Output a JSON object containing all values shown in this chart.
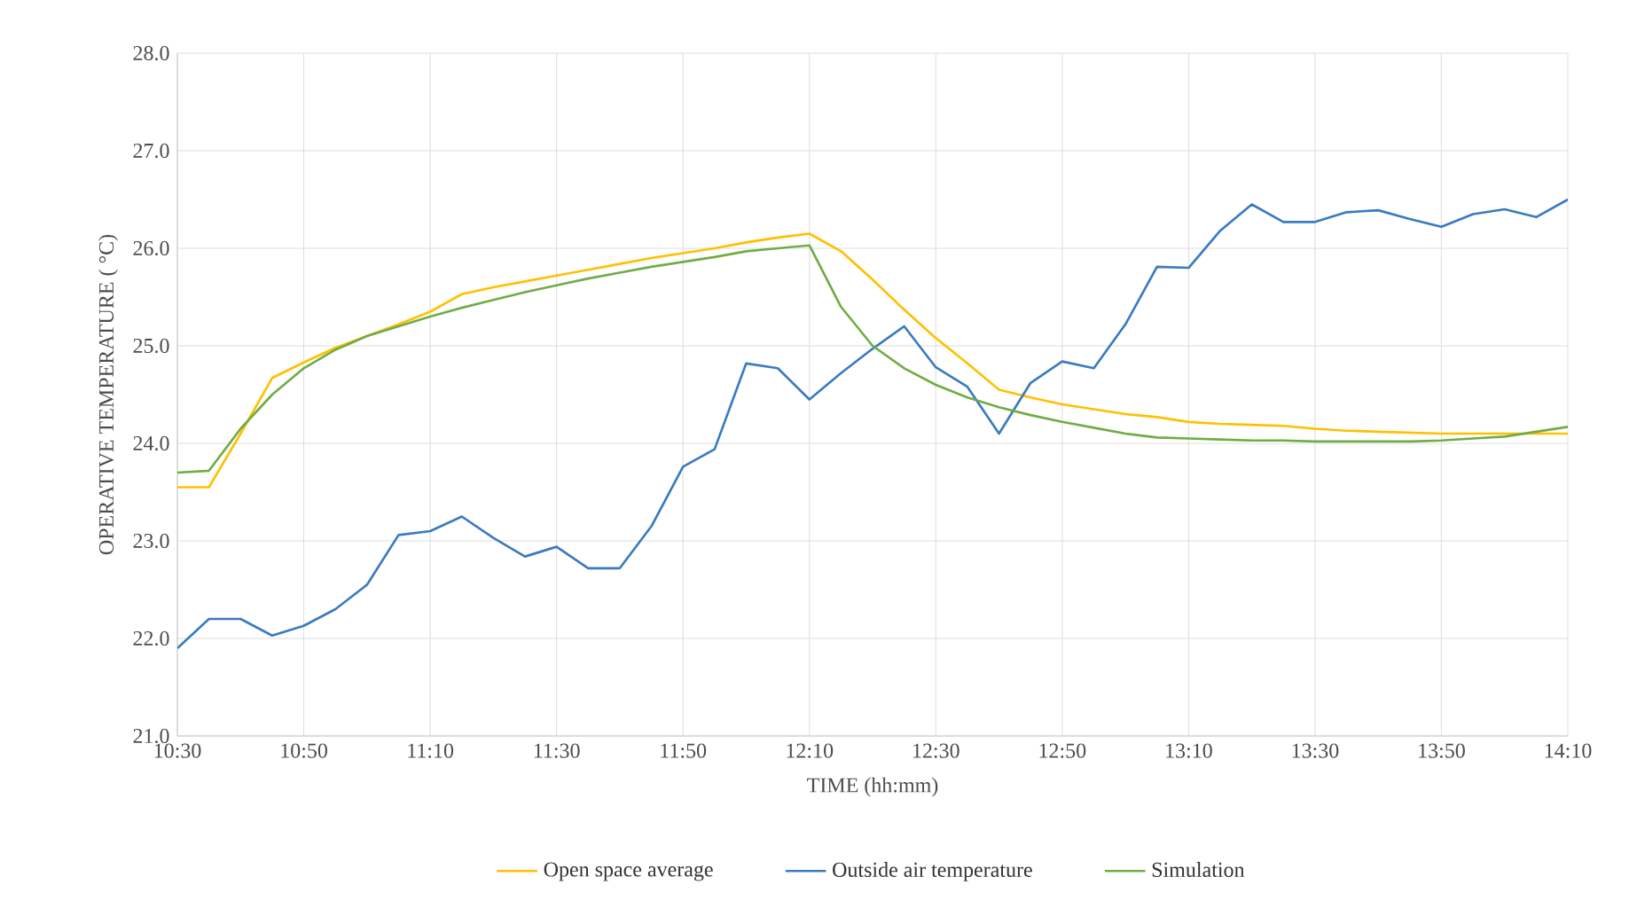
{
  "chart_data": {
    "type": "line",
    "xlabel": "TIME (hh:mm)",
    "ylabel": "OPERATIVE TEMPERATURE ( °C)",
    "x": [
      10.5,
      10.5833,
      10.6667,
      10.75,
      10.8333,
      10.9167,
      11,
      11.0833,
      11.1667,
      11.25,
      11.3333,
      11.4167,
      11.5,
      11.5833,
      11.6667,
      11.75,
      11.8333,
      11.9167,
      12,
      12.0833,
      12.1667,
      12.25,
      12.3333,
      12.4167,
      12.5,
      12.5833,
      12.6667,
      12.75,
      12.8333,
      12.9167,
      13,
      13.0833,
      13.1667,
      13.25,
      13.3333,
      13.4167,
      13.5,
      13.5833,
      13.6667,
      13.75,
      13.8333,
      13.9167,
      14,
      14.0833,
      14.1667
    ],
    "series": [
      {
        "name": "Open space average",
        "color": "#ffc000",
        "values": [
          23.55,
          23.55,
          24.1,
          24.67,
          24.83,
          24.98,
          25.1,
          25.22,
          25.35,
          25.53,
          25.6,
          25.66,
          25.72,
          25.78,
          25.84,
          25.9,
          25.95,
          26.0,
          26.06,
          26.11,
          26.15,
          25.97,
          25.68,
          25.37,
          25.08,
          24.82,
          24.55,
          24.47,
          24.4,
          24.35,
          24.3,
          24.27,
          24.22,
          24.2,
          24.19,
          24.18,
          24.15,
          24.13,
          24.12,
          24.11,
          24.1,
          24.1,
          24.1,
          24.1,
          24.1
        ]
      },
      {
        "name": "Outside air temperature",
        "color": "#3b7bbf",
        "values": [
          21.9,
          22.2,
          22.2,
          22.03,
          22.13,
          22.3,
          22.55,
          23.06,
          23.1,
          23.25,
          23.03,
          22.84,
          22.94,
          22.72,
          22.72,
          23.15,
          23.76,
          23.94,
          24.82,
          24.77,
          24.45,
          24.72,
          24.97,
          25.2,
          24.78,
          24.58,
          24.1,
          24.62,
          24.84,
          24.77,
          25.22,
          25.81,
          25.8,
          26.18,
          26.45,
          26.27,
          26.27,
          26.37,
          26.39,
          26.3,
          26.22,
          26.35,
          26.4,
          26.32,
          26.5
        ]
      },
      {
        "name": "Simulation",
        "color": "#70ad47",
        "values": [
          23.7,
          23.72,
          24.15,
          24.5,
          24.77,
          24.96,
          25.1,
          25.2,
          25.3,
          25.39,
          25.47,
          25.55,
          25.62,
          25.69,
          25.75,
          25.81,
          25.86,
          25.91,
          25.97,
          26.0,
          26.03,
          25.4,
          25.0,
          24.77,
          24.6,
          24.47,
          24.37,
          24.29,
          24.22,
          24.16,
          24.1,
          24.06,
          24.05,
          24.04,
          24.03,
          24.03,
          24.02,
          24.02,
          24.02,
          24.02,
          24.03,
          24.05,
          24.07,
          24.12,
          24.17
        ]
      }
    ],
    "xlim": [
      10.5,
      14.1667
    ],
    "xticks": [
      {
        "value": 10.5,
        "label": "10:30"
      },
      {
        "value": 10.8333,
        "label": "10:50"
      },
      {
        "value": 11.1667,
        "label": "11:10"
      },
      {
        "value": 11.5,
        "label": "11:30"
      },
      {
        "value": 11.8333,
        "label": "11:50"
      },
      {
        "value": 12.1667,
        "label": "12:10"
      },
      {
        "value": 12.5,
        "label": "12:30"
      },
      {
        "value": 12.8333,
        "label": "12:50"
      },
      {
        "value": 13.1667,
        "label": "13:10"
      },
      {
        "value": 13.5,
        "label": "13:30"
      },
      {
        "value": 13.8333,
        "label": "13:50"
      },
      {
        "value": 14.1667,
        "label": "14:10"
      }
    ],
    "ylim": [
      21,
      28
    ],
    "yticks": [
      {
        "value": 21,
        "label": "21.0"
      },
      {
        "value": 22,
        "label": "22.0"
      },
      {
        "value": 23,
        "label": "23.0"
      },
      {
        "value": 24,
        "label": "24.0"
      },
      {
        "value": 25,
        "label": "25.0"
      },
      {
        "value": 26,
        "label": "26.0"
      },
      {
        "value": 27,
        "label": "27.0"
      },
      {
        "value": 28,
        "label": "28.0"
      }
    ],
    "grid": true,
    "legend": "bottom",
    "marker": "none",
    "line_style": "solid"
  }
}
